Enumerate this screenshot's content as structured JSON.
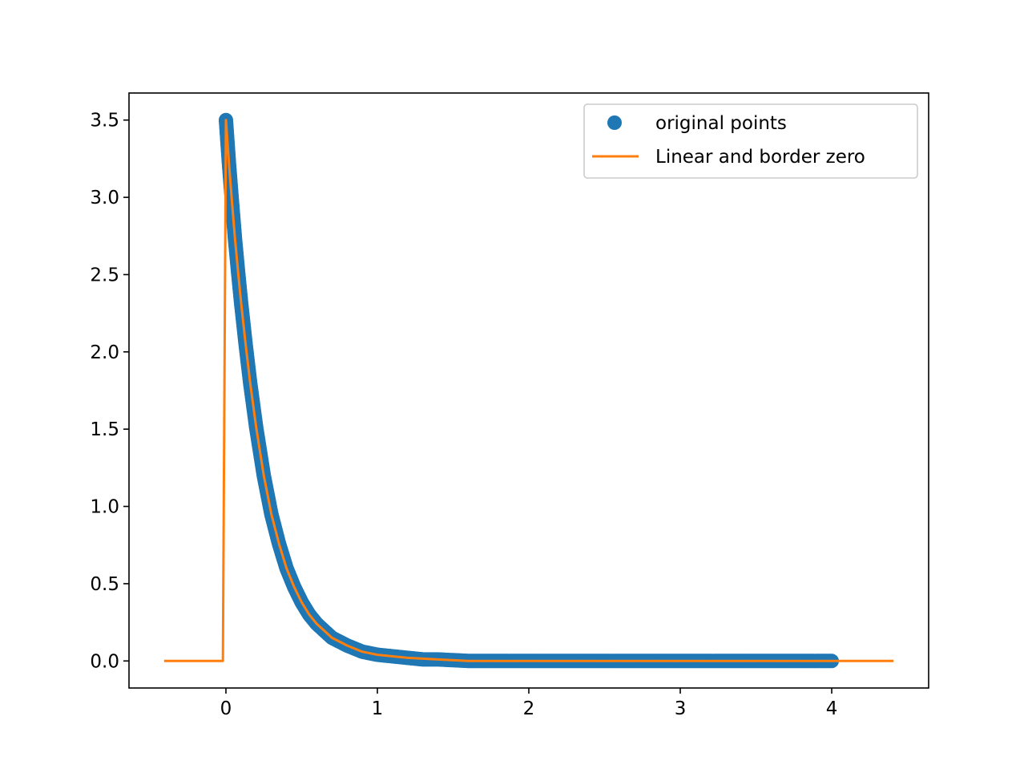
{
  "chart_data": {
    "type": "line",
    "title": "",
    "xlabel": "",
    "ylabel": "",
    "xlim": [
      -0.64,
      4.64
    ],
    "ylim": [
      -0.175,
      3.675
    ],
    "grid": false,
    "legend_position": "upper-right",
    "x_ticks": [
      0,
      1,
      2,
      3,
      4
    ],
    "x_tick_labels": [
      "0",
      "1",
      "2",
      "3",
      "4"
    ],
    "y_ticks": [
      0.0,
      0.5,
      1.0,
      1.5,
      2.0,
      2.5,
      3.0,
      3.5
    ],
    "y_tick_labels": [
      "0.0",
      "0.5",
      "1.0",
      "1.5",
      "2.0",
      "2.5",
      "3.0",
      "3.5"
    ],
    "series": [
      {
        "name": "original points",
        "style": "markers",
        "color": "#1f77b4",
        "x": [
          0.0,
          0.02,
          0.04,
          0.06,
          0.08,
          0.1,
          0.13,
          0.16,
          0.2,
          0.25,
          0.3,
          0.35,
          0.4,
          0.45,
          0.5,
          0.55,
          0.6,
          0.7,
          0.8,
          0.9,
          1.0,
          1.1,
          1.2,
          1.3,
          1.4,
          1.6,
          1.8,
          2.0,
          2.25,
          2.5,
          2.75,
          3.0,
          3.25,
          3.5,
          3.75,
          4.0
        ],
        "y": [
          3.5,
          3.22,
          2.97,
          2.73,
          2.52,
          2.32,
          2.05,
          1.8,
          1.51,
          1.2,
          0.95,
          0.76,
          0.6,
          0.48,
          0.38,
          0.3,
          0.24,
          0.15,
          0.1,
          0.06,
          0.04,
          0.03,
          0.02,
          0.01,
          0.01,
          0.0,
          0.0,
          0.0,
          0.0,
          0.0,
          0.0,
          0.0,
          0.0,
          0.0,
          0.0,
          0.0
        ]
      },
      {
        "name": "Linear and border zero",
        "style": "line",
        "color": "#ff7f0e",
        "x": [
          -0.4,
          -0.02,
          0.0,
          0.02,
          0.04,
          0.06,
          0.08,
          0.1,
          0.13,
          0.16,
          0.2,
          0.25,
          0.3,
          0.35,
          0.4,
          0.45,
          0.5,
          0.55,
          0.6,
          0.7,
          0.8,
          0.9,
          1.0,
          1.2,
          1.4,
          1.6,
          1.8,
          2.0,
          3.0,
          4.0,
          4.4
        ],
        "y": [
          0.0,
          0.0,
          3.5,
          3.22,
          2.97,
          2.73,
          2.52,
          2.32,
          2.05,
          1.8,
          1.51,
          1.2,
          0.95,
          0.76,
          0.6,
          0.48,
          0.38,
          0.3,
          0.24,
          0.15,
          0.1,
          0.06,
          0.04,
          0.02,
          0.01,
          0.0,
          0.0,
          0.0,
          0.0,
          0.0,
          0.0
        ]
      }
    ]
  }
}
